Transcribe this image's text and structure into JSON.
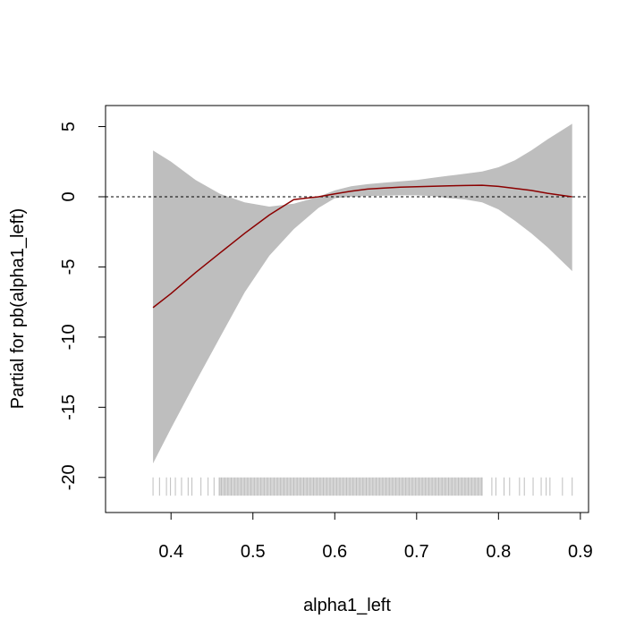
{
  "chart_data": {
    "type": "line",
    "title": "",
    "xlabel": "alpha1_left",
    "ylabel": "Partial for pb(alpha1_left)",
    "xlim": [
      0.32,
      0.91
    ],
    "ylim": [
      -22.5,
      6.5
    ],
    "x_ticks": [
      0.4,
      0.5,
      0.6,
      0.7,
      0.8,
      0.9
    ],
    "x_tick_labels": [
      "0.4",
      "0.5",
      "0.6",
      "0.7",
      "0.8",
      "0.9"
    ],
    "y_ticks": [
      -20,
      -15,
      -10,
      -5,
      0,
      5
    ],
    "y_tick_labels": [
      "-20",
      "-15",
      "-10",
      "-5",
      "0",
      "5"
    ],
    "reference_line": {
      "y": 0,
      "style": "dashed"
    },
    "grid": false,
    "series": [
      {
        "type": "line",
        "x": [
          0.378,
          0.4,
          0.43,
          0.46,
          0.49,
          0.52,
          0.55,
          0.58,
          0.6,
          0.62,
          0.64,
          0.66,
          0.68,
          0.7,
          0.72,
          0.74,
          0.76,
          0.78,
          0.8,
          0.82,
          0.84,
          0.86,
          0.89
        ],
        "y": [
          -7.9,
          -6.9,
          -5.4,
          -4.0,
          -2.6,
          -1.3,
          -0.2,
          0.0,
          0.2,
          0.4,
          0.55,
          0.62,
          0.68,
          0.72,
          0.75,
          0.78,
          0.8,
          0.82,
          0.74,
          0.6,
          0.45,
          0.25,
          0.0
        ]
      },
      {
        "type": "area",
        "x": [
          0.378,
          0.4,
          0.43,
          0.46,
          0.49,
          0.52,
          0.55,
          0.58,
          0.6,
          0.62,
          0.64,
          0.66,
          0.68,
          0.7,
          0.72,
          0.74,
          0.76,
          0.78,
          0.8,
          0.82,
          0.84,
          0.86,
          0.89
        ],
        "upper": [
          3.3,
          2.5,
          1.2,
          0.2,
          -0.4,
          -0.7,
          -0.5,
          0.0,
          0.45,
          0.75,
          0.9,
          1.0,
          1.1,
          1.2,
          1.35,
          1.5,
          1.65,
          1.8,
          2.1,
          2.6,
          3.3,
          4.1,
          5.2
        ],
        "lower": [
          -19.0,
          -16.5,
          -13.2,
          -10.0,
          -6.8,
          -4.2,
          -2.3,
          -0.8,
          -0.1,
          0.0,
          0.05,
          0.08,
          0.1,
          0.1,
          0.05,
          -0.1,
          -0.2,
          -0.4,
          -0.9,
          -1.7,
          -2.6,
          -3.6,
          -5.3
        ]
      }
    ],
    "rug_range": [
      0.378,
      0.89
    ],
    "colors": {
      "line": "#8b0000",
      "band": "#bebebe",
      "rug": "#bebebe",
      "axis": "#000000"
    }
  }
}
